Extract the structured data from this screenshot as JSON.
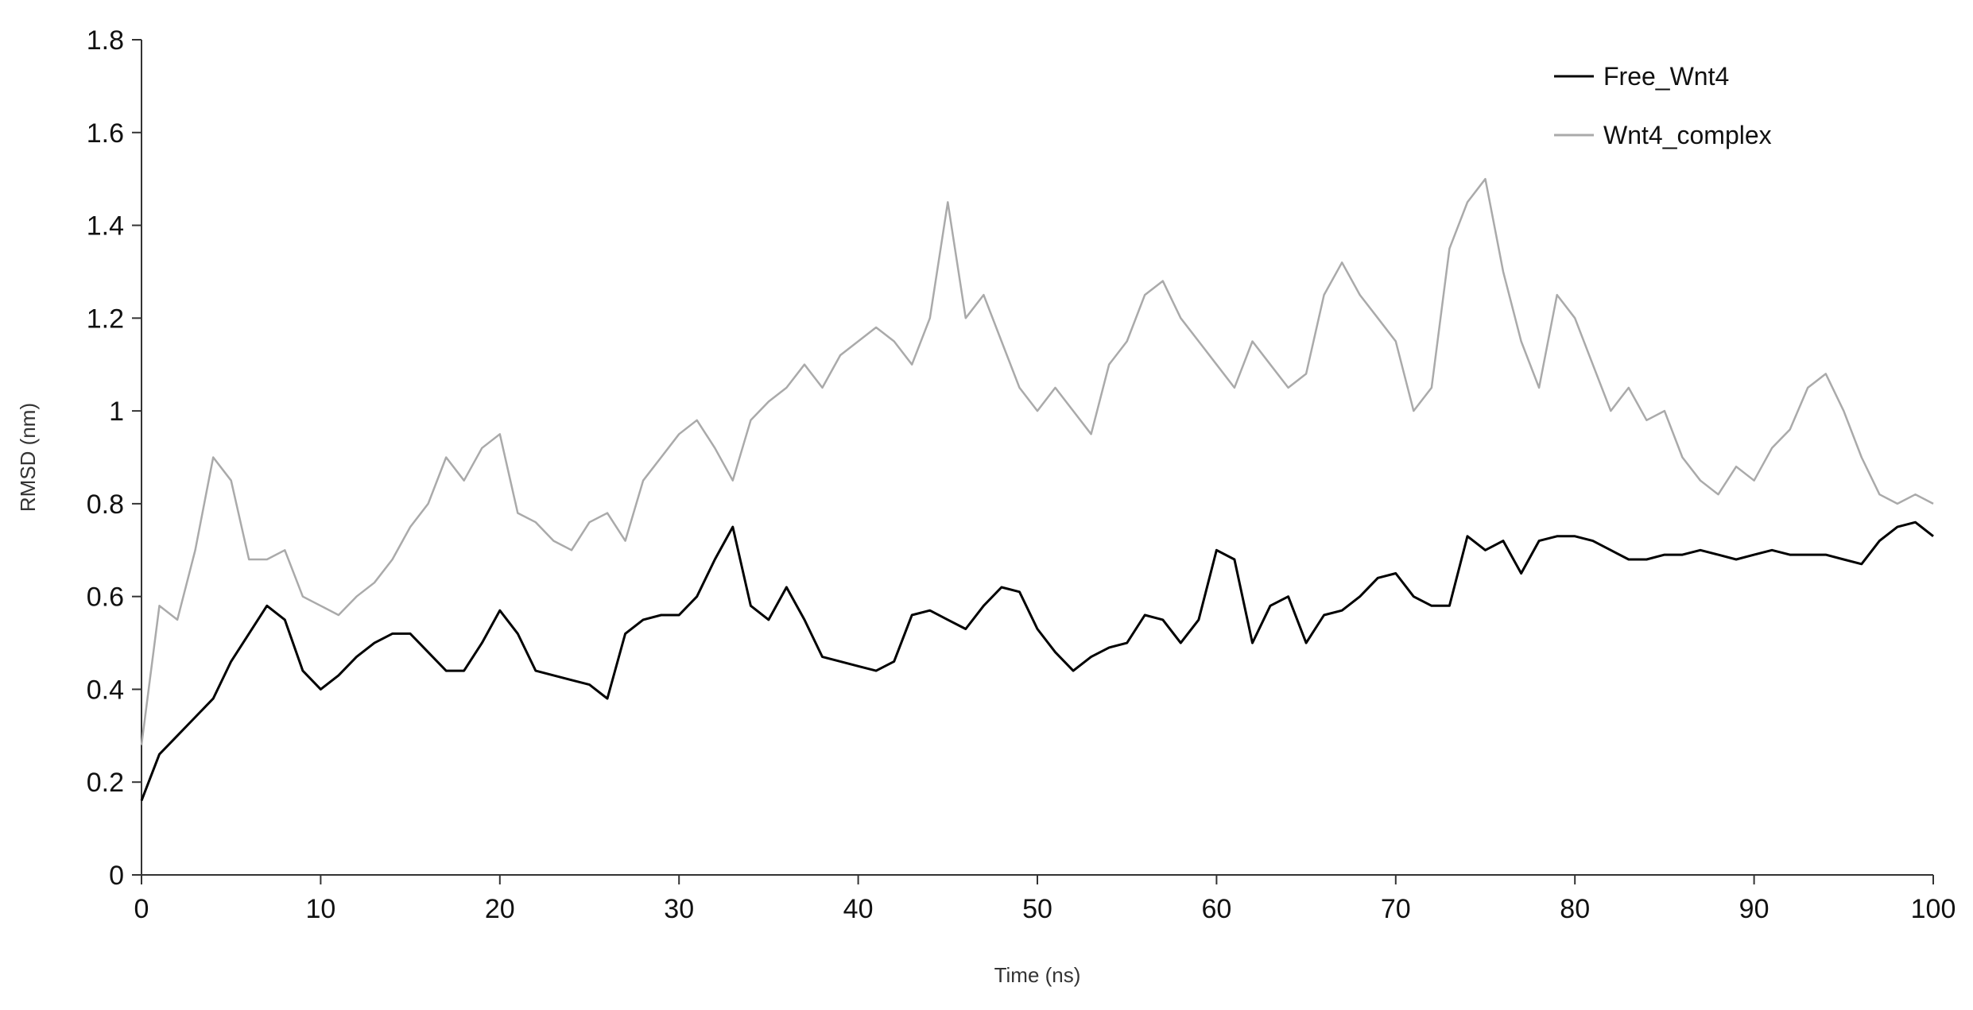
{
  "chart_data": {
    "type": "line",
    "title": "",
    "xlabel": "Time (ns)",
    "ylabel": "RMSD (nm)",
    "xlim": [
      0,
      100
    ],
    "ylim": [
      0,
      1.8
    ],
    "xticks": [
      "0",
      "10",
      "20",
      "30",
      "40",
      "50",
      "60",
      "70",
      "80",
      "90",
      "100"
    ],
    "yticks": [
      "0",
      "0.2",
      "0.4",
      "0.6",
      "0.8",
      "1",
      "1.2",
      "1.4",
      "1.6",
      "1.8"
    ],
    "grid": false,
    "legend_position": "top-right",
    "series": [
      {
        "name": "Free_Wnt4",
        "color": "#000000",
        "x": [
          0,
          1,
          2,
          3,
          4,
          5,
          6,
          7,
          8,
          9,
          10,
          11,
          12,
          13,
          14,
          15,
          16,
          17,
          18,
          19,
          20,
          21,
          22,
          23,
          24,
          25,
          26,
          27,
          28,
          29,
          30,
          31,
          32,
          33,
          34,
          35,
          36,
          37,
          38,
          39,
          40,
          41,
          42,
          43,
          44,
          45,
          46,
          47,
          48,
          49,
          50,
          51,
          52,
          53,
          54,
          55,
          56,
          57,
          58,
          59,
          60,
          61,
          62,
          63,
          64,
          65,
          66,
          67,
          68,
          69,
          70,
          71,
          72,
          73,
          74,
          75,
          76,
          77,
          78,
          79,
          80,
          81,
          82,
          83,
          84,
          85,
          86,
          87,
          88,
          89,
          90,
          91,
          92,
          93,
          94,
          95,
          96,
          97,
          98,
          99,
          100
        ],
        "y": [
          0.16,
          0.26,
          0.3,
          0.34,
          0.38,
          0.46,
          0.52,
          0.58,
          0.55,
          0.44,
          0.4,
          0.43,
          0.47,
          0.5,
          0.52,
          0.52,
          0.48,
          0.44,
          0.44,
          0.5,
          0.57,
          0.52,
          0.44,
          0.43,
          0.42,
          0.41,
          0.38,
          0.52,
          0.55,
          0.56,
          0.56,
          0.6,
          0.68,
          0.75,
          0.58,
          0.55,
          0.62,
          0.55,
          0.47,
          0.46,
          0.45,
          0.44,
          0.46,
          0.56,
          0.57,
          0.55,
          0.53,
          0.58,
          0.62,
          0.61,
          0.53,
          0.48,
          0.44,
          0.47,
          0.49,
          0.5,
          0.56,
          0.55,
          0.5,
          0.55,
          0.7,
          0.68,
          0.5,
          0.58,
          0.6,
          0.5,
          0.56,
          0.57,
          0.6,
          0.64,
          0.65,
          0.6,
          0.58,
          0.58,
          0.73,
          0.7,
          0.72,
          0.65,
          0.72,
          0.73,
          0.73,
          0.72,
          0.7,
          0.68,
          0.68,
          0.69,
          0.69,
          0.7,
          0.69,
          0.68,
          0.69,
          0.7,
          0.69,
          0.69,
          0.69,
          0.68,
          0.67,
          0.72,
          0.75,
          0.76,
          0.73
        ]
      },
      {
        "name": "Wnt4_complex",
        "color": "#aaaaaa",
        "x": [
          0,
          1,
          2,
          3,
          4,
          5,
          6,
          7,
          8,
          9,
          10,
          11,
          12,
          13,
          14,
          15,
          16,
          17,
          18,
          19,
          20,
          21,
          22,
          23,
          24,
          25,
          26,
          27,
          28,
          29,
          30,
          31,
          32,
          33,
          34,
          35,
          36,
          37,
          38,
          39,
          40,
          41,
          42,
          43,
          44,
          45,
          46,
          47,
          48,
          49,
          50,
          51,
          52,
          53,
          54,
          55,
          56,
          57,
          58,
          59,
          60,
          61,
          62,
          63,
          64,
          65,
          66,
          67,
          68,
          69,
          70,
          71,
          72,
          73,
          74,
          75,
          76,
          77,
          78,
          79,
          80,
          81,
          82,
          83,
          84,
          85,
          86,
          87,
          88,
          89,
          90,
          91,
          92,
          93,
          94,
          95,
          96,
          97,
          98,
          99,
          100
        ],
        "y": [
          0.28,
          0.58,
          0.55,
          0.7,
          0.9,
          0.85,
          0.68,
          0.68,
          0.7,
          0.6,
          0.58,
          0.56,
          0.6,
          0.63,
          0.68,
          0.75,
          0.8,
          0.9,
          0.85,
          0.92,
          0.95,
          0.78,
          0.76,
          0.72,
          0.7,
          0.76,
          0.78,
          0.72,
          0.85,
          0.9,
          0.95,
          0.98,
          0.92,
          0.85,
          0.98,
          1.02,
          1.05,
          1.1,
          1.05,
          1.12,
          1.15,
          1.18,
          1.15,
          1.1,
          1.2,
          1.45,
          1.2,
          1.25,
          1.15,
          1.05,
          1.0,
          1.05,
          1.0,
          0.95,
          1.1,
          1.15,
          1.25,
          1.28,
          1.2,
          1.15,
          1.1,
          1.05,
          1.15,
          1.1,
          1.05,
          1.08,
          1.25,
          1.32,
          1.25,
          1.2,
          1.15,
          1.0,
          1.05,
          1.35,
          1.45,
          1.5,
          1.3,
          1.15,
          1.05,
          1.25,
          1.2,
          1.1,
          1.0,
          1.05,
          0.98,
          1.0,
          0.9,
          0.85,
          0.82,
          0.88,
          0.85,
          0.92,
          0.96,
          1.05,
          1.08,
          1.0,
          0.9,
          0.82,
          0.8,
          0.82,
          0.8
        ]
      }
    ]
  }
}
